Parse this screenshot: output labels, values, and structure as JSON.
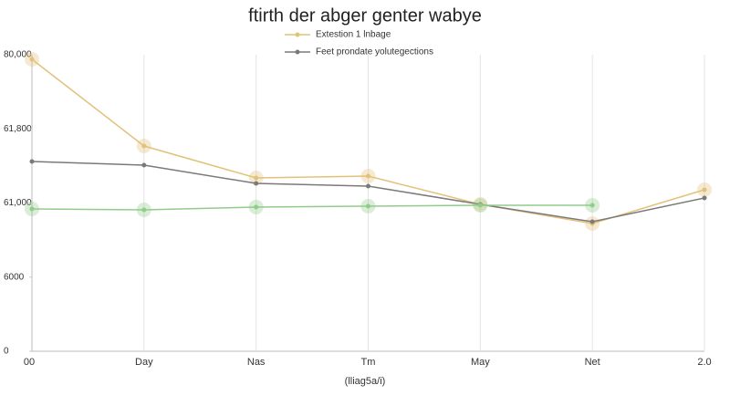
{
  "chart_data": {
    "type": "line",
    "title": "ftirth der abger genter wabye",
    "x_label": "(lliag5a/i)",
    "categories": [
      "00",
      "Day",
      "Nas",
      "Tm",
      "May",
      "Net",
      "2.0"
    ],
    "series": [
      {
        "name": "Extestion 1 lnbage",
        "color": "#e2c27a",
        "values": [
          78770,
          55380,
          46770,
          47260,
          39630,
          34460,
          43570
        ]
      },
      {
        "name": "Feet prondate yolutegections",
        "color": "#7a7a7a",
        "values": [
          51200,
          50220,
          45290,
          44550,
          39630,
          34950,
          41350
        ]
      },
      {
        "name": null,
        "color": "#92cc8c",
        "values": [
          38400,
          38150,
          38900,
          39140,
          39380,
          39380,
          null
        ]
      }
    ],
    "ylim": [
      0,
      80000
    ],
    "yticks": [
      0,
      {
        "value": 20000,
        "label": "6000"
      },
      {
        "value": 40000,
        "label": "61,000"
      },
      {
        "value": 60000,
        "label": "61,800"
      },
      {
        "value": 80000,
        "label": "80,000"
      }
    ],
    "grid": true,
    "legend": "top"
  }
}
